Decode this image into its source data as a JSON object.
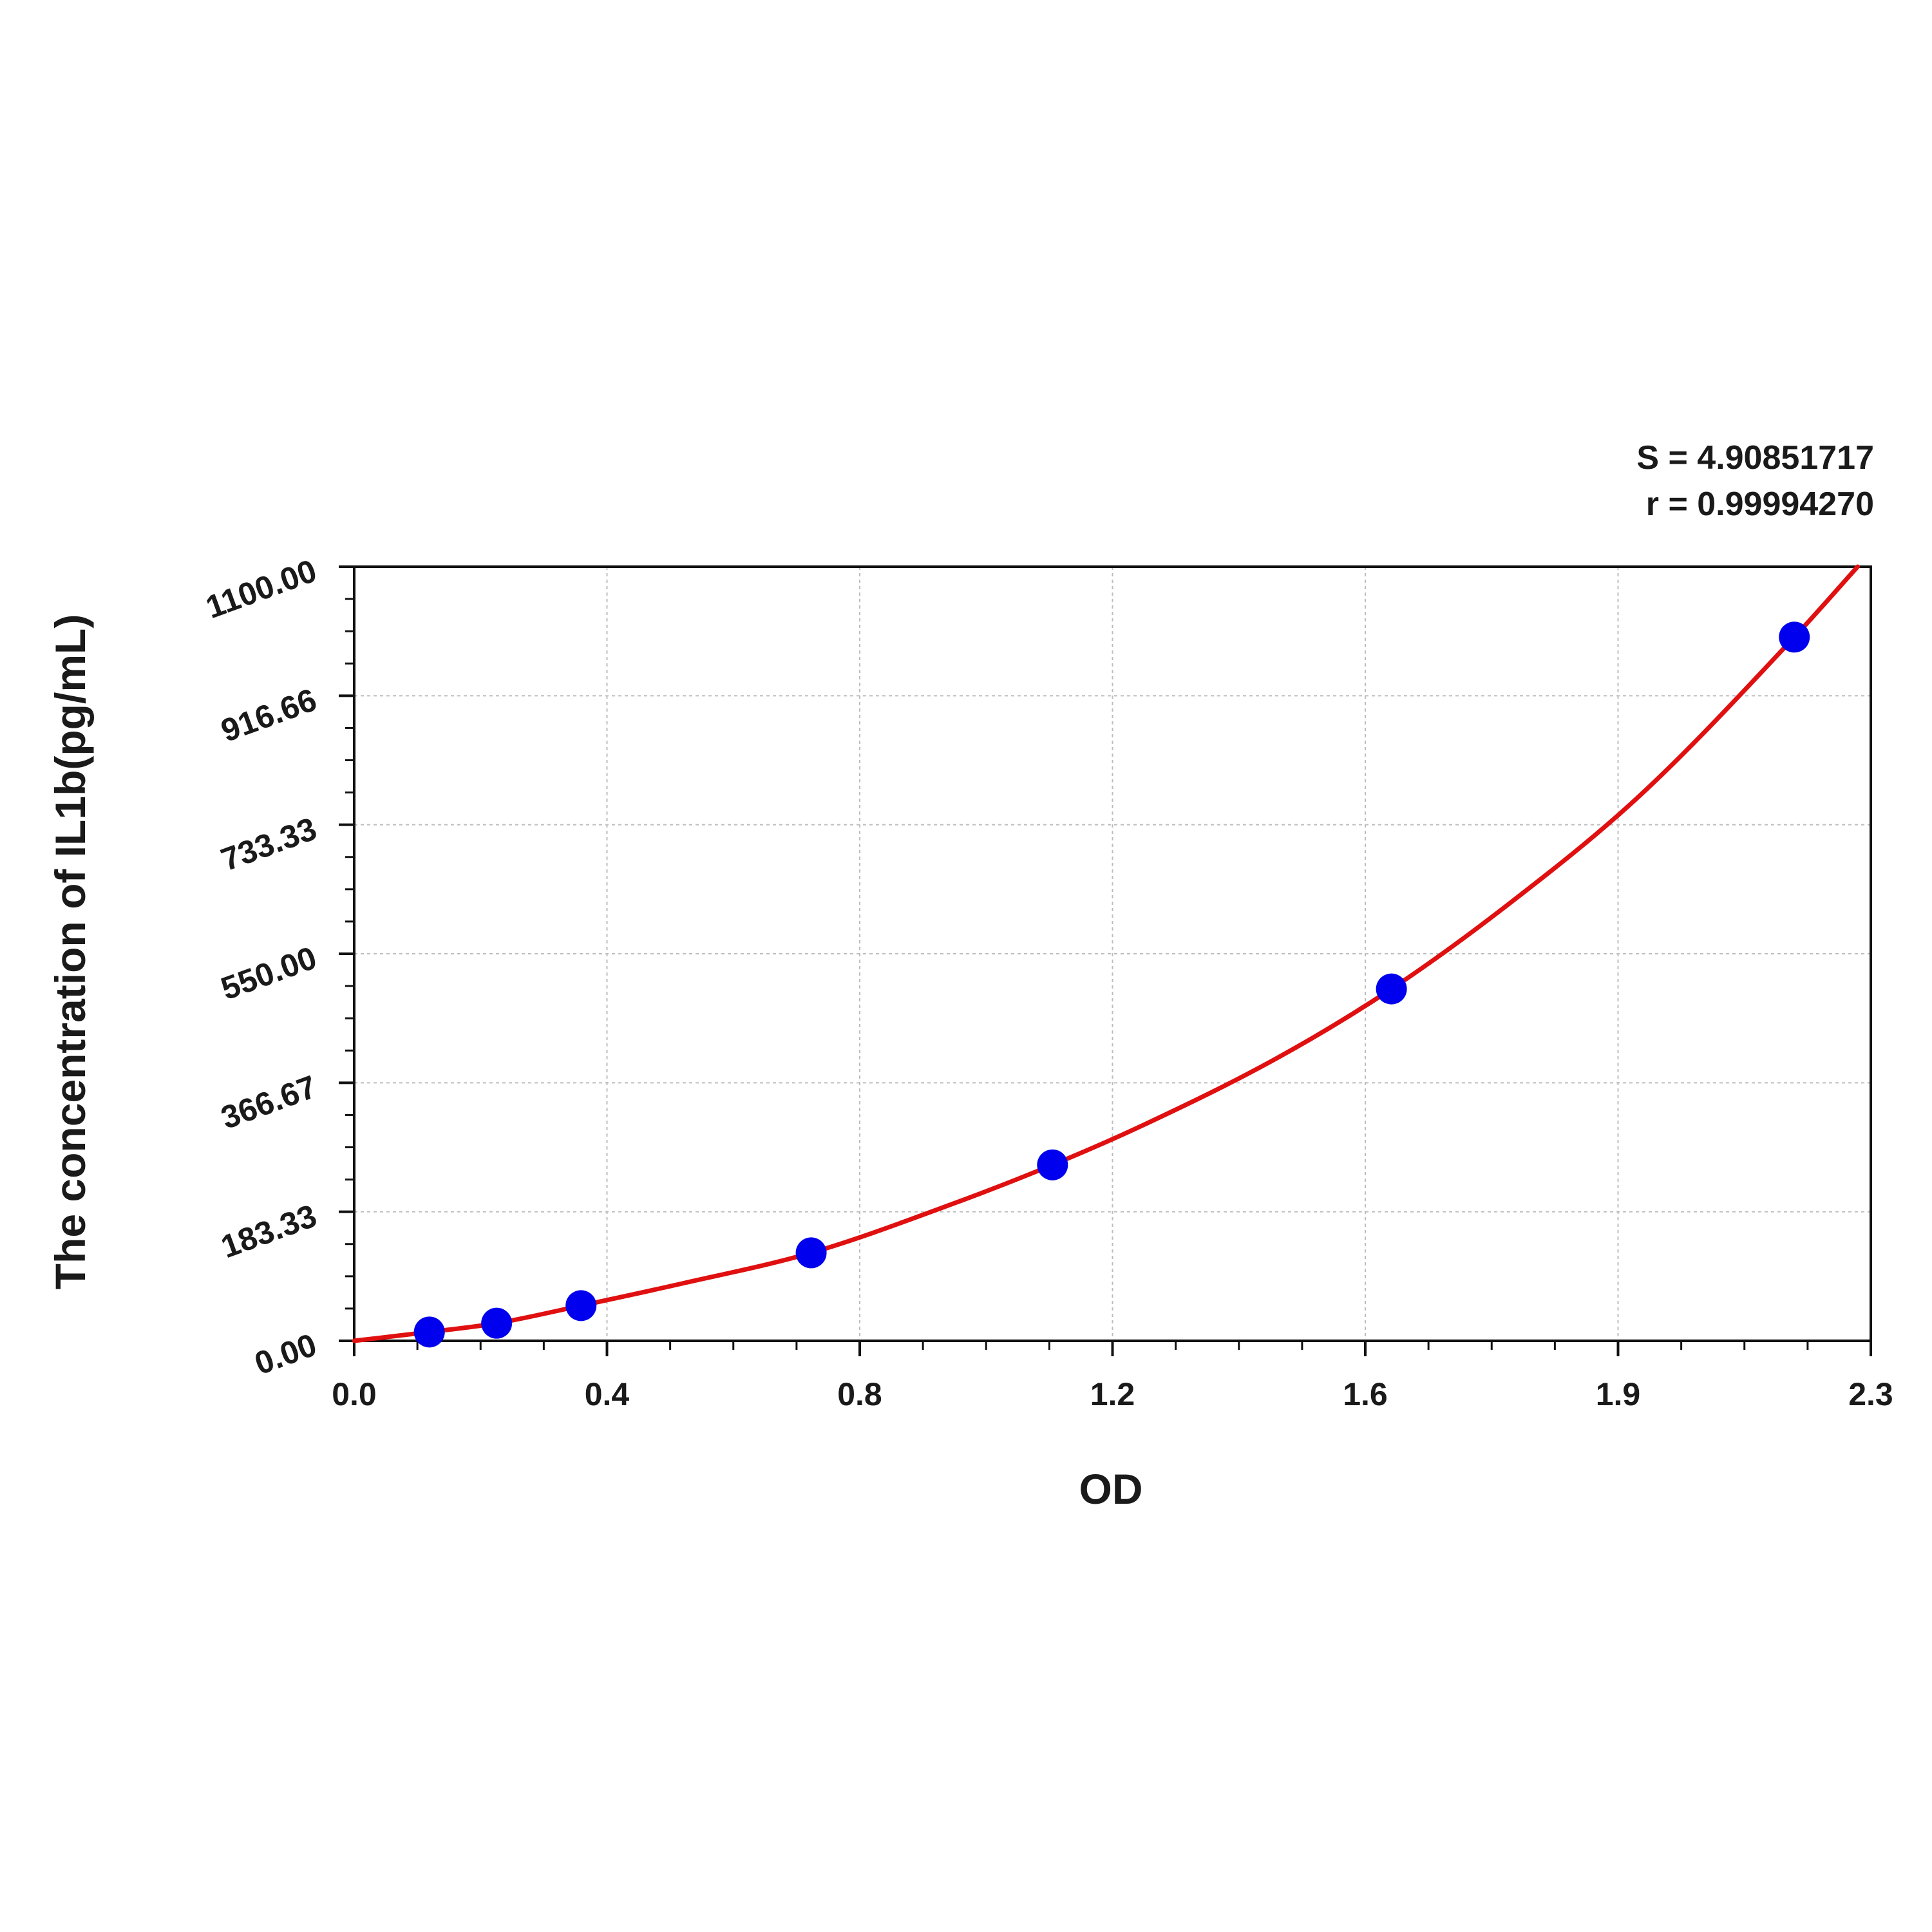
{
  "stats": {
    "s_text": "S = 4.90851717",
    "r_text": "r = 0.99994270"
  },
  "chart_data": {
    "type": "scatter",
    "title": "",
    "xlabel": "OD",
    "ylabel": "The concentration of IL1b(pg/mL)",
    "xlim": [
      0.0,
      2.3
    ],
    "ylim": [
      0.0,
      1100.0
    ],
    "x_ticks": [
      "0.0",
      "0.4",
      "0.8",
      "1.2",
      "1.6",
      "1.9",
      "2.3"
    ],
    "y_ticks": [
      "0.00",
      "183.33",
      "366.67",
      "550.00",
      "733.33",
      "916.66",
      "1100.00"
    ],
    "grid": true,
    "series": [
      {
        "kind": "points",
        "color": "#0000ee",
        "x": [
          0.114,
          0.216,
          0.344,
          0.693,
          1.059,
          1.573,
          2.184
        ],
        "y": [
          12.5,
          25,
          50,
          125,
          250,
          500,
          1000
        ]
      },
      {
        "kind": "fit-curve",
        "color": "#e01010",
        "x": [
          0.0,
          0.114,
          0.216,
          0.344,
          0.5,
          0.693,
          0.9,
          1.059,
          1.2,
          1.4,
          1.573,
          1.75,
          1.95,
          2.184,
          2.28
        ],
        "y": [
          0,
          12.5,
          25,
          50,
          82,
          125,
          192,
          250,
          308,
          402,
          500,
          620,
          775,
          1000,
          1100
        ]
      }
    ]
  }
}
